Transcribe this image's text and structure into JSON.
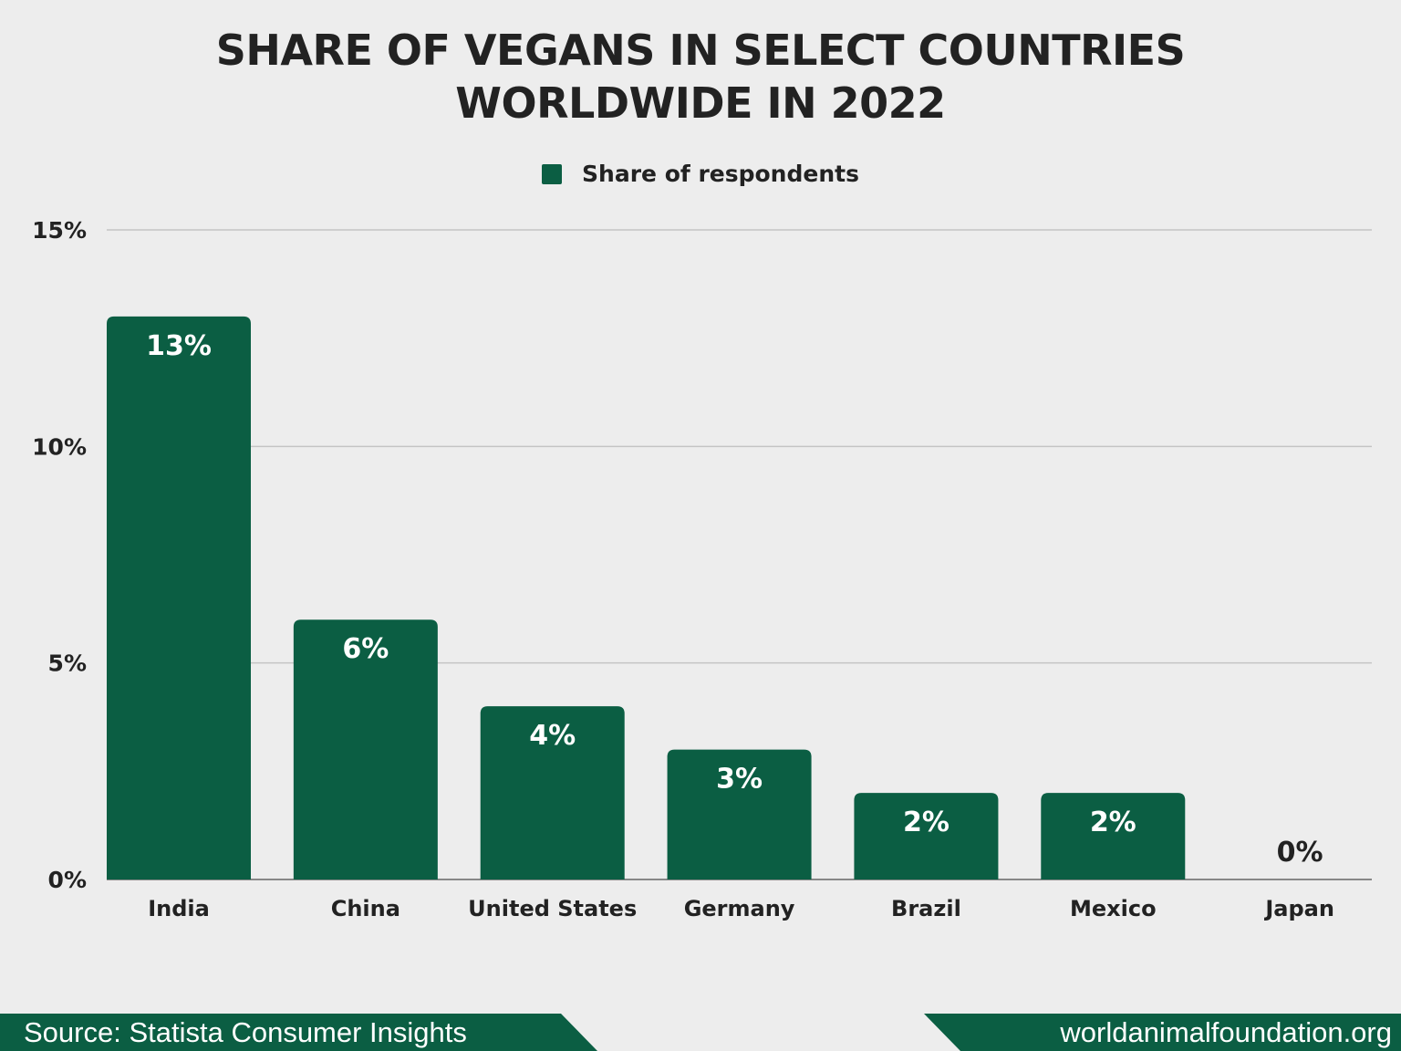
{
  "chart_data": {
    "type": "bar",
    "title": "SHARE OF VEGANS IN SELECT COUNTRIES WORLDWIDE IN 2022",
    "title_lines": [
      "SHARE OF VEGANS IN SELECT COUNTRIES",
      "WORLDWIDE IN 2022"
    ],
    "categories": [
      "India",
      "China",
      "United States",
      "Germany",
      "Brazil",
      "Mexico",
      "Japan"
    ],
    "series": [
      {
        "name": "Share of respondents",
        "values": [
          13,
          6,
          4,
          3,
          2,
          2,
          0
        ],
        "color": "#0b5e43"
      }
    ],
    "data_labels": [
      "13%",
      "6%",
      "4%",
      "3%",
      "2%",
      "2%",
      "0%"
    ],
    "ylim": [
      0,
      15
    ],
    "yticks": [
      0,
      5,
      10,
      15
    ],
    "ytick_labels": [
      "0%",
      "5%",
      "10%",
      "15%"
    ],
    "xlabel": "",
    "ylabel": "",
    "grid": true,
    "legend_position": "top-center"
  },
  "footer": {
    "source": "Source: Statista Consumer Insights",
    "site": "worldanimalfoundation.org",
    "color": "#0b5e43"
  }
}
